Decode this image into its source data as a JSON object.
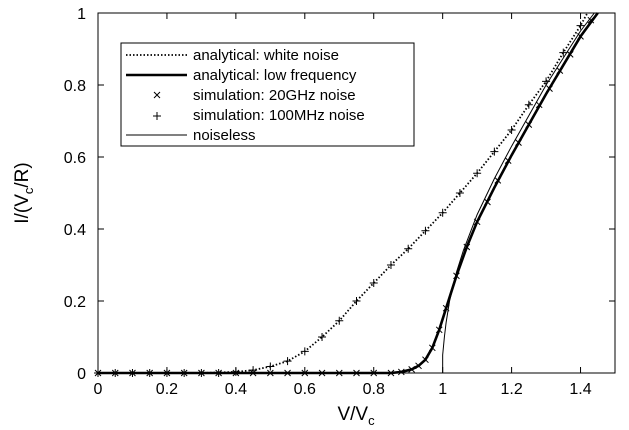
{
  "chart_data": {
    "type": "line",
    "xlabel": "V/V",
    "xlabel_sub": "c",
    "ylabel_pre": "I/(V",
    "ylabel_sub": "c",
    "ylabel_post": "/R)",
    "xlim": [
      0,
      1.5
    ],
    "ylim": [
      0,
      1
    ],
    "x_ticks": [
      {
        "value": 0,
        "label": "0"
      },
      {
        "value": 0.2,
        "label": "0.2"
      },
      {
        "value": 0.4,
        "label": "0.4"
      },
      {
        "value": 0.6,
        "label": "0.6"
      },
      {
        "value": 0.8,
        "label": "0.8"
      },
      {
        "value": 1,
        "label": "1"
      },
      {
        "value": 1.2,
        "label": "1.2"
      },
      {
        "value": 1.4,
        "label": "1.4"
      }
    ],
    "y_ticks": [
      {
        "value": 0,
        "label": "0"
      },
      {
        "value": 0.2,
        "label": "0.2"
      },
      {
        "value": 0.4,
        "label": "0.4"
      },
      {
        "value": 0.6,
        "label": "0.6"
      },
      {
        "value": 0.8,
        "label": "0.8"
      },
      {
        "value": 1,
        "label": "1"
      }
    ],
    "grid": false,
    "legend_position": "top-left",
    "series": [
      {
        "name": "analytical: white noise",
        "style": "dotted",
        "points": [
          [
            0,
            0
          ],
          [
            0.3,
            0
          ],
          [
            0.4,
            0.003
          ],
          [
            0.45,
            0.008
          ],
          [
            0.5,
            0.018
          ],
          [
            0.55,
            0.033
          ],
          [
            0.6,
            0.06
          ],
          [
            0.65,
            0.1
          ],
          [
            0.7,
            0.145
          ],
          [
            0.75,
            0.2
          ],
          [
            0.8,
            0.25
          ],
          [
            0.85,
            0.3
          ],
          [
            0.9,
            0.345
          ],
          [
            0.95,
            0.395
          ],
          [
            1.0,
            0.445
          ],
          [
            1.05,
            0.5
          ],
          [
            1.1,
            0.555
          ],
          [
            1.15,
            0.615
          ],
          [
            1.2,
            0.675
          ],
          [
            1.25,
            0.745
          ],
          [
            1.3,
            0.81
          ],
          [
            1.35,
            0.89
          ],
          [
            1.4,
            0.965
          ],
          [
            1.42,
            1.0
          ]
        ]
      },
      {
        "name": "analytical: low frequency",
        "style": "thick",
        "points": [
          [
            0,
            0
          ],
          [
            0.85,
            0
          ],
          [
            0.88,
            0.003
          ],
          [
            0.91,
            0.01
          ],
          [
            0.93,
            0.02
          ],
          [
            0.95,
            0.037
          ],
          [
            0.97,
            0.07
          ],
          [
            0.99,
            0.12
          ],
          [
            1.01,
            0.18
          ],
          [
            1.04,
            0.27
          ],
          [
            1.07,
            0.35
          ],
          [
            1.1,
            0.42
          ],
          [
            1.15,
            0.515
          ],
          [
            1.2,
            0.605
          ],
          [
            1.25,
            0.69
          ],
          [
            1.3,
            0.775
          ],
          [
            1.35,
            0.855
          ],
          [
            1.4,
            0.935
          ],
          [
            1.45,
            1.0
          ]
        ]
      },
      {
        "name": "simulation: 20GHz noise",
        "style": "x-markers",
        "points": [
          [
            0,
            0
          ],
          [
            0.05,
            0
          ],
          [
            0.1,
            0
          ],
          [
            0.15,
            0
          ],
          [
            0.2,
            0
          ],
          [
            0.25,
            0
          ],
          [
            0.3,
            0
          ],
          [
            0.35,
            0
          ],
          [
            0.4,
            0
          ],
          [
            0.45,
            0
          ],
          [
            0.5,
            0
          ],
          [
            0.55,
            0
          ],
          [
            0.6,
            0
          ],
          [
            0.65,
            0
          ],
          [
            0.7,
            0
          ],
          [
            0.75,
            0
          ],
          [
            0.8,
            0
          ],
          [
            0.85,
            0
          ],
          [
            0.88,
            0.003
          ],
          [
            0.91,
            0.01
          ],
          [
            0.93,
            0.02
          ],
          [
            0.95,
            0.037
          ],
          [
            0.97,
            0.07
          ],
          [
            0.99,
            0.12
          ],
          [
            1.01,
            0.18
          ],
          [
            1.04,
            0.27
          ],
          [
            1.07,
            0.35
          ],
          [
            1.1,
            0.42
          ],
          [
            1.13,
            0.475
          ],
          [
            1.16,
            0.535
          ],
          [
            1.19,
            0.59
          ],
          [
            1.22,
            0.64
          ],
          [
            1.25,
            0.69
          ],
          [
            1.28,
            0.745
          ],
          [
            1.31,
            0.79
          ],
          [
            1.34,
            0.84
          ],
          [
            1.37,
            0.885
          ],
          [
            1.4,
            0.935
          ],
          [
            1.43,
            0.98
          ]
        ]
      },
      {
        "name": "simulation: 100MHz noise",
        "style": "plus-markers",
        "points": [
          [
            0,
            0
          ],
          [
            0.05,
            0
          ],
          [
            0.1,
            0
          ],
          [
            0.15,
            0
          ],
          [
            0.2,
            0
          ],
          [
            0.25,
            0
          ],
          [
            0.3,
            0
          ],
          [
            0.35,
            0
          ],
          [
            0.4,
            0.003
          ],
          [
            0.45,
            0.008
          ],
          [
            0.5,
            0.018
          ],
          [
            0.55,
            0.033
          ],
          [
            0.6,
            0.06
          ],
          [
            0.65,
            0.1
          ],
          [
            0.7,
            0.145
          ],
          [
            0.75,
            0.2
          ],
          [
            0.8,
            0.25
          ],
          [
            0.85,
            0.3
          ],
          [
            0.9,
            0.345
          ],
          [
            0.95,
            0.395
          ],
          [
            1.0,
            0.445
          ],
          [
            1.05,
            0.5
          ],
          [
            1.1,
            0.555
          ],
          [
            1.15,
            0.615
          ],
          [
            1.2,
            0.675
          ],
          [
            1.25,
            0.745
          ],
          [
            1.3,
            0.81
          ],
          [
            1.35,
            0.89
          ],
          [
            1.4,
            0.965
          ]
        ]
      },
      {
        "name": "noiseless",
        "style": "thin",
        "points": [
          [
            0,
            0
          ],
          [
            1.0,
            0
          ],
          [
            1.0,
            0.05
          ],
          [
            1.005,
            0.1
          ],
          [
            1.01,
            0.14
          ],
          [
            1.02,
            0.2
          ],
          [
            1.04,
            0.28
          ],
          [
            1.06,
            0.34
          ],
          [
            1.1,
            0.44
          ],
          [
            1.15,
            0.54
          ],
          [
            1.2,
            0.63
          ],
          [
            1.25,
            0.715
          ],
          [
            1.3,
            0.8
          ],
          [
            1.35,
            0.875
          ],
          [
            1.4,
            0.95
          ],
          [
            1.44,
            1.0
          ]
        ]
      }
    ]
  }
}
